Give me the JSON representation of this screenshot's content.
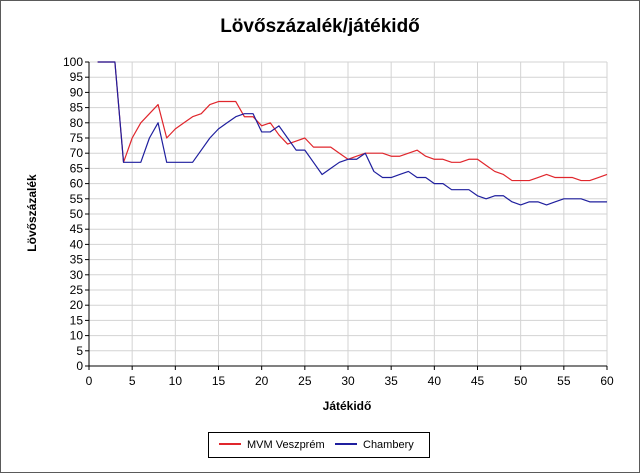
{
  "chart_data": {
    "type": "line",
    "title": "Lövőszázalék/játékidő",
    "xlabel": "Játékidő",
    "ylabel": "Lövőszázalék",
    "xlim": [
      0,
      60
    ],
    "ylim": [
      0,
      100
    ],
    "x_ticks": [
      0,
      5,
      10,
      15,
      20,
      25,
      30,
      35,
      40,
      45,
      50,
      55,
      60
    ],
    "y_ticks": [
      0,
      5,
      10,
      15,
      20,
      25,
      30,
      35,
      40,
      45,
      50,
      55,
      60,
      65,
      70,
      75,
      80,
      85,
      90,
      95,
      100
    ],
    "grid": true,
    "legend_position": "bottom",
    "x": [
      1,
      2,
      3,
      4,
      5,
      6,
      7,
      8,
      9,
      10,
      11,
      12,
      13,
      14,
      15,
      16,
      17,
      18,
      19,
      20,
      21,
      22,
      23,
      24,
      25,
      26,
      27,
      28,
      29,
      30,
      31,
      32,
      33,
      34,
      35,
      36,
      37,
      38,
      39,
      40,
      41,
      42,
      43,
      44,
      45,
      46,
      47,
      48,
      49,
      50,
      51,
      52,
      53,
      54,
      55,
      56,
      57,
      58,
      59,
      60
    ],
    "series": [
      {
        "name": "MVM Veszprém",
        "color": "#e0262c",
        "values": [
          100,
          100,
          100,
          67,
          75,
          80,
          83,
          86,
          75,
          78,
          80,
          82,
          83,
          86,
          87,
          87,
          87,
          82,
          82,
          79,
          80,
          76,
          73,
          74,
          75,
          72,
          72,
          72,
          70,
          68,
          69,
          70,
          70,
          70,
          69,
          69,
          70,
          71,
          69,
          68,
          68,
          67,
          67,
          68,
          68,
          66,
          64,
          63,
          61,
          61,
          61,
          62,
          63,
          62,
          62,
          62,
          61,
          61,
          62,
          63
        ]
      },
      {
        "name": "Chambery",
        "color": "#1f1f9e",
        "values": [
          100,
          100,
          100,
          67,
          67,
          67,
          75,
          80,
          67,
          67,
          67,
          67,
          71,
          75,
          78,
          80,
          82,
          83,
          83,
          77,
          77,
          79,
          75,
          71,
          71,
          67,
          63,
          65,
          67,
          68,
          68,
          70,
          64,
          62,
          62,
          63,
          64,
          62,
          62,
          60,
          60,
          58,
          58,
          58,
          56,
          55,
          56,
          56,
          54,
          53,
          54,
          54,
          53,
          54,
          55,
          55,
          55,
          54,
          54,
          54
        ]
      }
    ]
  }
}
